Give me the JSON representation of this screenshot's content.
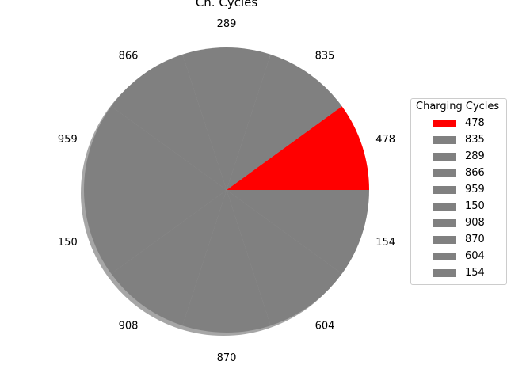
{
  "chart_data": {
    "type": "pie",
    "title": "Ch. Cycles",
    "legend_title": "Charging Cycles",
    "legend_position": "right",
    "slice_labels": [
      "478",
      "835",
      "289",
      "866",
      "959",
      "150",
      "908",
      "870",
      "604",
      "154"
    ],
    "values": [
      10,
      10,
      10,
      10,
      10,
      10,
      10,
      10,
      10,
      10
    ],
    "highlight_color": "#ff0000",
    "base_color": "#808080",
    "colors": [
      "#ff0000",
      "#808080",
      "#808080",
      "#808080",
      "#808080",
      "#808080",
      "#808080",
      "#808080",
      "#808080",
      "#808080"
    ],
    "shadow": true
  }
}
